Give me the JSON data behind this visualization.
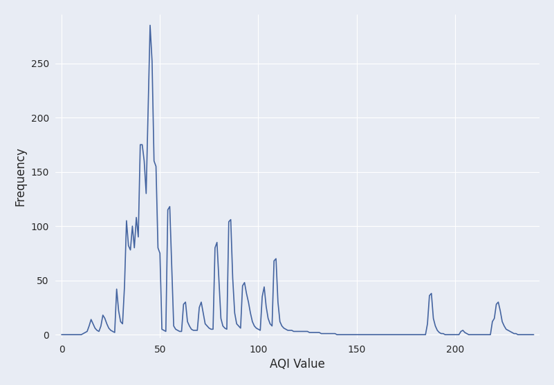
{
  "xlabel": "AQI Value",
  "ylabel": "Frequency",
  "line_color": "#4464a0",
  "axes_facecolor": "#e8ecf4",
  "figure_facecolor": "#e8ecf4",
  "xlim": [
    -3,
    243
  ],
  "ylim": [
    -3,
    295
  ],
  "yticks": [
    0,
    50,
    100,
    150,
    200,
    250
  ],
  "xticks": [
    0,
    50,
    100,
    150,
    200
  ],
  "figsize": [
    8.01,
    5.57
  ],
  "dpi": 100,
  "freq": {
    "0": 0,
    "1": 0,
    "2": 0,
    "3": 0,
    "4": 0,
    "5": 0,
    "6": 0,
    "7": 0,
    "8": 0,
    "9": 0,
    "10": 0,
    "11": 1,
    "12": 2,
    "13": 3,
    "14": 8,
    "15": 14,
    "16": 10,
    "17": 6,
    "18": 4,
    "19": 3,
    "20": 8,
    "21": 18,
    "22": 15,
    "23": 10,
    "24": 6,
    "25": 4,
    "26": 3,
    "27": 2,
    "28": 42,
    "29": 22,
    "30": 12,
    "31": 10,
    "32": 45,
    "33": 105,
    "34": 82,
    "35": 78,
    "36": 100,
    "37": 80,
    "38": 108,
    "39": 90,
    "40": 175,
    "41": 175,
    "42": 160,
    "43": 130,
    "44": 208,
    "45": 285,
    "46": 252,
    "47": 160,
    "48": 155,
    "49": 80,
    "50": 75,
    "51": 5,
    "52": 4,
    "53": 3,
    "54": 115,
    "55": 118,
    "56": 62,
    "57": 8,
    "58": 5,
    "59": 4,
    "60": 3,
    "61": 3,
    "62": 28,
    "63": 30,
    "64": 12,
    "65": 8,
    "66": 5,
    "67": 4,
    "68": 4,
    "69": 4,
    "70": 25,
    "71": 30,
    "72": 20,
    "73": 10,
    "74": 8,
    "75": 6,
    "76": 5,
    "77": 5,
    "78": 80,
    "79": 85,
    "80": 50,
    "81": 15,
    "82": 8,
    "83": 6,
    "84": 5,
    "85": 104,
    "86": 106,
    "87": 52,
    "88": 20,
    "89": 10,
    "90": 8,
    "91": 6,
    "92": 45,
    "93": 48,
    "94": 38,
    "95": 30,
    "96": 20,
    "97": 12,
    "98": 8,
    "99": 6,
    "100": 5,
    "101": 4,
    "102": 35,
    "103": 44,
    "104": 26,
    "105": 15,
    "106": 10,
    "107": 8,
    "108": 68,
    "109": 70,
    "110": 30,
    "111": 12,
    "112": 8,
    "113": 6,
    "114": 5,
    "115": 4,
    "116": 4,
    "117": 4,
    "118": 3,
    "119": 3,
    "120": 3,
    "121": 3,
    "122": 3,
    "123": 3,
    "124": 3,
    "125": 3,
    "126": 2,
    "127": 2,
    "128": 2,
    "129": 2,
    "130": 2,
    "131": 2,
    "132": 1,
    "133": 1,
    "134": 1,
    "135": 1,
    "136": 1,
    "137": 1,
    "138": 1,
    "139": 1,
    "140": 0,
    "141": 0,
    "142": 0,
    "143": 0,
    "144": 0,
    "145": 0,
    "146": 0,
    "147": 0,
    "148": 0,
    "149": 0,
    "150": 0,
    "151": 0,
    "152": 0,
    "153": 0,
    "154": 0,
    "155": 0,
    "156": 0,
    "157": 0,
    "158": 0,
    "159": 0,
    "160": 0,
    "161": 0,
    "162": 0,
    "163": 0,
    "164": 0,
    "165": 0,
    "166": 0,
    "167": 0,
    "168": 0,
    "169": 0,
    "170": 0,
    "171": 0,
    "172": 0,
    "173": 0,
    "174": 0,
    "175": 0,
    "176": 0,
    "177": 0,
    "178": 0,
    "179": 0,
    "180": 0,
    "181": 0,
    "182": 0,
    "183": 0,
    "184": 0,
    "185": 0,
    "186": 10,
    "187": 36,
    "188": 38,
    "189": 15,
    "190": 8,
    "191": 4,
    "192": 2,
    "193": 1,
    "194": 1,
    "195": 0,
    "196": 0,
    "197": 0,
    "198": 0,
    "199": 0,
    "200": 0,
    "201": 0,
    "202": 0,
    "203": 3,
    "204": 4,
    "205": 2,
    "206": 1,
    "207": 0,
    "208": 0,
    "209": 0,
    "210": 0,
    "211": 0,
    "212": 0,
    "213": 0,
    "214": 0,
    "215": 0,
    "216": 0,
    "217": 0,
    "218": 0,
    "219": 12,
    "220": 15,
    "221": 28,
    "222": 30,
    "223": 22,
    "224": 12,
    "225": 8,
    "226": 5,
    "227": 4,
    "228": 3,
    "229": 2,
    "230": 1,
    "231": 1,
    "232": 0,
    "233": 0,
    "234": 0,
    "235": 0,
    "236": 0,
    "237": 0,
    "238": 0,
    "239": 0,
    "240": 0
  }
}
